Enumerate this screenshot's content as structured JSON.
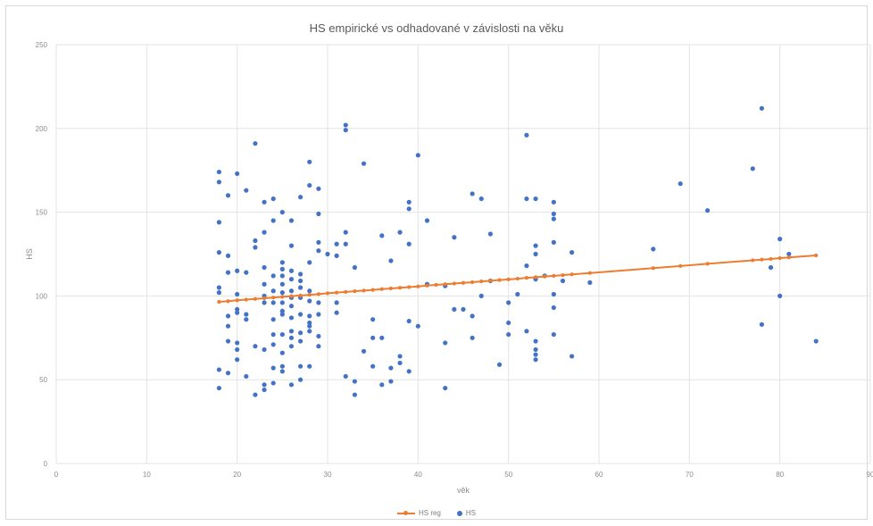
{
  "chart_data": {
    "type": "scatter",
    "title": "HS empirické vs odhadované v závislosti na věku",
    "xlabel": "věk",
    "ylabel": "HS",
    "xlim": [
      0,
      90
    ],
    "ylim": [
      0,
      250
    ],
    "x_ticks": [
      "0",
      "10",
      "20",
      "30",
      "40",
      "50",
      "60",
      "70",
      "80",
      "90"
    ],
    "y_ticks": [
      "0",
      "50",
      "100",
      "150",
      "200",
      "250"
    ],
    "grid": true,
    "legend_position": "bottom",
    "series": [
      {
        "name": "HS reg",
        "kind": "line",
        "color": "#ed7d31",
        "x": [
          18,
          19,
          20,
          21,
          22,
          23,
          24,
          25,
          26,
          27,
          28,
          29,
          30,
          31,
          32,
          33,
          34,
          35,
          36,
          37,
          38,
          39,
          40,
          41,
          42,
          43,
          44,
          45,
          46,
          47,
          48,
          49,
          50,
          51,
          52,
          53,
          54,
          55,
          56,
          57,
          59,
          66,
          69,
          72,
          77,
          78,
          79,
          80,
          81,
          84
        ],
        "y": [
          96.5,
          96.9,
          97.4,
          97.8,
          98.2,
          98.6,
          99.0,
          99.5,
          99.9,
          100.3,
          100.7,
          101.1,
          101.6,
          102.0,
          102.4,
          102.8,
          103.2,
          103.6,
          104.1,
          104.5,
          104.9,
          105.3,
          105.7,
          106.2,
          106.6,
          107.0,
          107.4,
          107.8,
          108.2,
          108.7,
          109.1,
          109.5,
          109.9,
          110.3,
          110.8,
          111.2,
          111.6,
          112.0,
          112.4,
          112.9,
          113.7,
          116.6,
          117.9,
          119.2,
          121.3,
          121.7,
          122.1,
          122.6,
          123.0,
          124.2
        ]
      },
      {
        "name": "HS",
        "kind": "scatter",
        "color": "#4472c4",
        "points": [
          [
            18,
            174
          ],
          [
            18,
            168
          ],
          [
            18,
            144
          ],
          [
            18,
            126
          ],
          [
            18,
            105
          ],
          [
            18,
            102
          ],
          [
            18,
            56
          ],
          [
            18,
            45
          ],
          [
            19,
            160
          ],
          [
            19,
            124
          ],
          [
            19,
            114
          ],
          [
            19,
            88
          ],
          [
            19,
            82
          ],
          [
            19,
            73
          ],
          [
            19,
            54
          ],
          [
            20,
            173
          ],
          [
            20,
            115
          ],
          [
            20,
            101
          ],
          [
            20,
            92
          ],
          [
            20,
            90
          ],
          [
            20,
            72
          ],
          [
            20,
            68
          ],
          [
            20,
            62
          ],
          [
            21,
            163
          ],
          [
            21,
            114
          ],
          [
            21,
            89
          ],
          [
            21,
            86
          ],
          [
            21,
            52
          ],
          [
            22,
            191
          ],
          [
            22,
            133
          ],
          [
            22,
            129
          ],
          [
            22,
            70
          ],
          [
            22,
            41
          ],
          [
            23,
            156
          ],
          [
            23,
            138
          ],
          [
            23,
            117
          ],
          [
            23,
            107
          ],
          [
            23,
            100
          ],
          [
            23,
            96
          ],
          [
            23,
            68
          ],
          [
            23,
            47
          ],
          [
            23,
            44
          ],
          [
            24,
            158
          ],
          [
            24,
            145
          ],
          [
            24,
            112
          ],
          [
            24,
            103
          ],
          [
            24,
            96
          ],
          [
            24,
            86
          ],
          [
            24,
            77
          ],
          [
            24,
            71
          ],
          [
            24,
            57
          ],
          [
            24,
            48
          ],
          [
            25,
            150
          ],
          [
            25,
            120
          ],
          [
            25,
            116
          ],
          [
            25,
            112
          ],
          [
            25,
            107
          ],
          [
            25,
            102
          ],
          [
            25,
            96
          ],
          [
            25,
            91
          ],
          [
            25,
            89
          ],
          [
            25,
            77
          ],
          [
            25,
            66
          ],
          [
            25,
            58
          ],
          [
            25,
            55
          ],
          [
            26,
            145
          ],
          [
            26,
            130
          ],
          [
            26,
            115
          ],
          [
            26,
            110
          ],
          [
            26,
            103
          ],
          [
            26,
            99
          ],
          [
            26,
            94
          ],
          [
            26,
            87
          ],
          [
            26,
            79
          ],
          [
            26,
            75
          ],
          [
            26,
            70
          ],
          [
            26,
            47
          ],
          [
            27,
            159
          ],
          [
            27,
            113
          ],
          [
            27,
            109
          ],
          [
            27,
            105
          ],
          [
            27,
            99
          ],
          [
            27,
            89
          ],
          [
            27,
            78
          ],
          [
            27,
            73
          ],
          [
            27,
            58
          ],
          [
            27,
            50
          ],
          [
            28,
            180
          ],
          [
            28,
            166
          ],
          [
            28,
            120
          ],
          [
            28,
            103
          ],
          [
            28,
            97
          ],
          [
            28,
            88
          ],
          [
            28,
            84
          ],
          [
            28,
            82
          ],
          [
            28,
            79
          ],
          [
            28,
            58
          ],
          [
            29,
            164
          ],
          [
            29,
            149
          ],
          [
            29,
            132
          ],
          [
            29,
            127
          ],
          [
            29,
            96
          ],
          [
            29,
            89
          ],
          [
            29,
            76
          ],
          [
            29,
            70
          ],
          [
            30,
            125
          ],
          [
            31,
            131
          ],
          [
            31,
            124
          ],
          [
            31,
            96
          ],
          [
            31,
            90
          ],
          [
            32,
            202
          ],
          [
            32,
            199
          ],
          [
            32,
            138
          ],
          [
            32,
            131
          ],
          [
            32,
            52
          ],
          [
            33,
            117
          ],
          [
            33,
            49
          ],
          [
            33,
            41
          ],
          [
            34,
            179
          ],
          [
            34,
            67
          ],
          [
            35,
            86
          ],
          [
            35,
            75
          ],
          [
            35,
            58
          ],
          [
            36,
            136
          ],
          [
            36,
            75
          ],
          [
            36,
            47
          ],
          [
            37,
            121
          ],
          [
            37,
            57
          ],
          [
            37,
            49
          ],
          [
            38,
            138
          ],
          [
            38,
            64
          ],
          [
            38,
            60
          ],
          [
            39,
            156
          ],
          [
            39,
            152
          ],
          [
            39,
            131
          ],
          [
            39,
            85
          ],
          [
            39,
            55
          ],
          [
            40,
            184
          ],
          [
            40,
            82
          ],
          [
            41,
            145
          ],
          [
            41,
            107
          ],
          [
            43,
            106
          ],
          [
            43,
            72
          ],
          [
            43,
            45
          ],
          [
            44,
            135
          ],
          [
            44,
            92
          ],
          [
            45,
            92
          ],
          [
            46,
            161
          ],
          [
            46,
            88
          ],
          [
            46,
            75
          ],
          [
            47,
            158
          ],
          [
            47,
            100
          ],
          [
            48,
            137
          ],
          [
            48,
            109
          ],
          [
            49,
            59
          ],
          [
            50,
            96
          ],
          [
            50,
            84
          ],
          [
            50,
            77
          ],
          [
            51,
            101
          ],
          [
            52,
            196
          ],
          [
            52,
            158
          ],
          [
            52,
            118
          ],
          [
            52,
            79
          ],
          [
            53,
            158
          ],
          [
            53,
            130
          ],
          [
            53,
            125
          ],
          [
            53,
            110
          ],
          [
            53,
            73
          ],
          [
            53,
            68
          ],
          [
            53,
            65
          ],
          [
            53,
            62
          ],
          [
            54,
            112
          ],
          [
            55,
            156
          ],
          [
            55,
            149
          ],
          [
            55,
            146
          ],
          [
            55,
            132
          ],
          [
            55,
            101
          ],
          [
            55,
            93
          ],
          [
            55,
            77
          ],
          [
            56,
            109
          ],
          [
            57,
            126
          ],
          [
            57,
            64
          ],
          [
            59,
            108
          ],
          [
            66,
            128
          ],
          [
            69,
            167
          ],
          [
            72,
            151
          ],
          [
            77,
            176
          ],
          [
            78,
            212
          ],
          [
            78,
            83
          ],
          [
            79,
            117
          ],
          [
            80,
            134
          ],
          [
            80,
            100
          ],
          [
            81,
            125
          ],
          [
            84,
            73
          ]
        ]
      }
    ]
  }
}
